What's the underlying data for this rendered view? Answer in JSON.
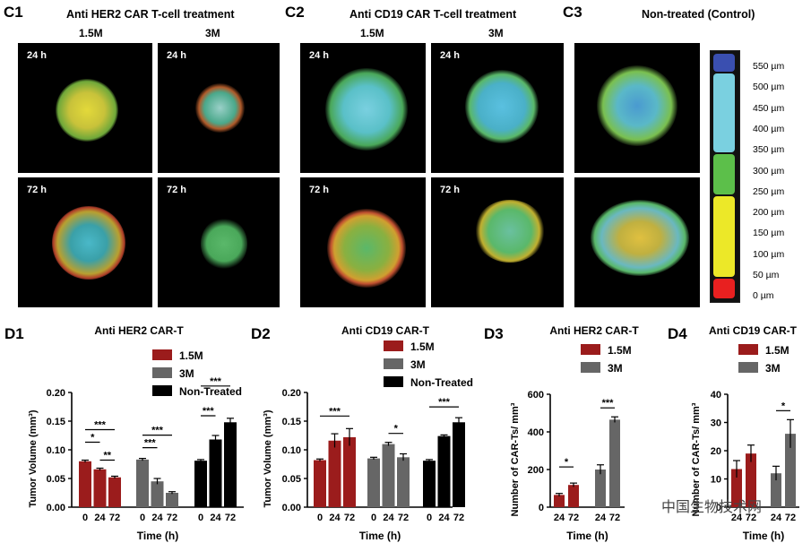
{
  "panel_c": {
    "c1_label": "C1",
    "c2_label": "C2",
    "c3_label": "C3",
    "c1_title": "Anti HER2 CAR T-cell treatment",
    "c2_title": "Anti CD19 CAR T-cell treatment",
    "c3_title": "Non-treated (Control)",
    "col_1_5m": "1.5M",
    "col_3m": "3M",
    "t24": "24 h",
    "t72": "72 h",
    "scale_ticks": [
      "550 µm",
      "500 µm",
      "450 µm",
      "400 µm",
      "350 µm",
      "300 µm",
      "250 µm",
      "200 µm",
      "150 µm",
      "100 µm",
      "50 µm",
      "0 µm"
    ],
    "scale_colors": [
      "#3a4fb0",
      "#7ad0e0",
      "#7ad0e0",
      "#7ad0e0",
      "#6fc07a",
      "#5cbf4a",
      "#5cbf4a",
      "#e8e020",
      "#ece828",
      "#e8e020",
      "#e82020"
    ]
  },
  "watermark": "中国生物技术网",
  "chart_data": [
    {
      "id": "D1",
      "label": "D1",
      "type": "bar",
      "title": "Anti HER2 CAR-T",
      "ylabel": "Tumor Volume (mm³)",
      "xlabel": "Time (h)",
      "ylim": [
        0,
        0.2
      ],
      "yticks": [
        "0.00",
        "0.05",
        "0.10",
        "0.15",
        "0.20"
      ],
      "legend": [
        "1.5M",
        "3M",
        "Non-Treated"
      ],
      "colors": [
        "#9b1c1c",
        "#666666",
        "#000000"
      ],
      "groups": [
        {
          "name": "1.5M",
          "x": [
            "0",
            "24",
            "72"
          ],
          "values": [
            0.08,
            0.066,
            0.052
          ],
          "err": [
            0.002,
            0.002,
            0.002
          ]
        },
        {
          "name": "3M",
          "x": [
            "0",
            "24",
            "72"
          ],
          "values": [
            0.083,
            0.045,
            0.025
          ],
          "err": [
            0.002,
            0.005,
            0.002
          ]
        },
        {
          "name": "Non-Treated",
          "x": [
            "0",
            "24",
            "72"
          ],
          "values": [
            0.081,
            0.118,
            0.148
          ],
          "err": [
            0.002,
            0.007,
            0.007
          ]
        }
      ],
      "significance": [
        "***",
        "*",
        "**",
        "***",
        "***",
        "***",
        "***"
      ]
    },
    {
      "id": "D2",
      "label": "D2",
      "type": "bar",
      "title": "Anti CD19 CAR-T",
      "ylabel": "Tumor Volume (mm³)",
      "xlabel": "Time (h)",
      "ylim": [
        0,
        0.2
      ],
      "yticks": [
        "0.00",
        "0.05",
        "0.10",
        "0.15",
        "0.20"
      ],
      "legend": [
        "1.5M",
        "3M",
        "Non-Treated"
      ],
      "colors": [
        "#9b1c1c",
        "#666666",
        "#000000"
      ],
      "groups": [
        {
          "name": "1.5M",
          "x": [
            "0",
            "24",
            "72"
          ],
          "values": [
            0.082,
            0.116,
            0.122
          ],
          "err": [
            0.002,
            0.012,
            0.015
          ]
        },
        {
          "name": "3M",
          "x": [
            "0",
            "24",
            "72"
          ],
          "values": [
            0.085,
            0.11,
            0.087
          ],
          "err": [
            0.002,
            0.003,
            0.006
          ]
        },
        {
          "name": "Non-Treated",
          "x": [
            "0",
            "24",
            "72"
          ],
          "values": [
            0.081,
            0.124,
            0.148
          ],
          "err": [
            0.002,
            0.002,
            0.008
          ]
        }
      ],
      "significance": [
        "***",
        "*",
        "***"
      ]
    },
    {
      "id": "D3",
      "label": "D3",
      "type": "bar",
      "title": "Anti HER2 CAR-T",
      "ylabel": "Number of CAR-Ts/ mm³",
      "xlabel": "Time (h)",
      "ylim": [
        0,
        600
      ],
      "yticks": [
        "0",
        "200",
        "400",
        "600"
      ],
      "legend": [
        "1.5M",
        "3M"
      ],
      "colors": [
        "#9b1c1c",
        "#666666"
      ],
      "groups": [
        {
          "name": "1.5M",
          "x": [
            "24",
            "72"
          ],
          "values": [
            65,
            118
          ],
          "err": [
            8,
            10
          ]
        },
        {
          "name": "3M",
          "x": [
            "24",
            "72"
          ],
          "values": [
            200,
            465
          ],
          "err": [
            25,
            15
          ]
        }
      ],
      "significance": [
        "*",
        "***"
      ]
    },
    {
      "id": "D4",
      "label": "D4",
      "type": "bar",
      "title": "Anti CD19 CAR-T",
      "ylabel": "Number of CAR-Ts/ mm³",
      "xlabel": "Time (h)",
      "ylim": [
        0,
        40
      ],
      "yticks": [
        "0",
        "10",
        "20",
        "30",
        "40"
      ],
      "legend": [
        "1.5M",
        "3M"
      ],
      "colors": [
        "#9b1c1c",
        "#666666"
      ],
      "groups": [
        {
          "name": "1.5M",
          "x": [
            "24",
            "72"
          ],
          "values": [
            13.5,
            19
          ],
          "err": [
            3,
            3
          ]
        },
        {
          "name": "3M",
          "x": [
            "24",
            "72"
          ],
          "values": [
            12,
            26
          ],
          "err": [
            2.5,
            5
          ]
        }
      ],
      "significance": [
        "*"
      ]
    }
  ]
}
